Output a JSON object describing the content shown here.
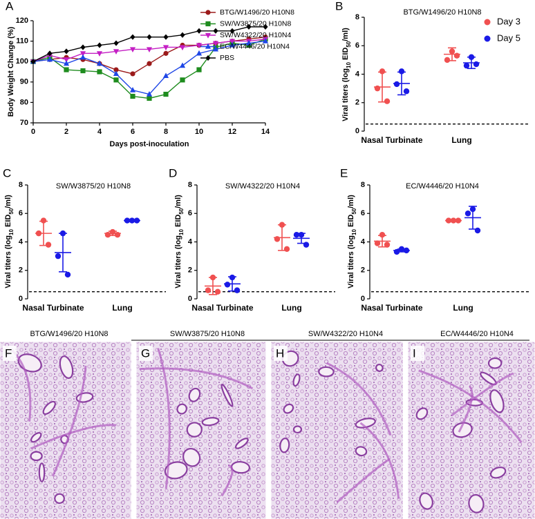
{
  "chart_data": [
    {
      "type": "line",
      "panel": "A",
      "x_label": "Days post-inoculation",
      "y_label": "Body Weight Change (%)",
      "x": [
        0,
        1,
        2,
        3,
        4,
        5,
        6,
        7,
        8,
        9,
        10,
        11,
        12,
        13,
        14
      ],
      "xlim": [
        0,
        14
      ],
      "xticks": [
        0,
        2,
        4,
        6,
        8,
        10,
        12,
        14
      ],
      "ylim": [
        70,
        120
      ],
      "yticks": [
        70,
        80,
        90,
        100,
        110,
        120
      ],
      "legend": "top-right",
      "series": [
        {
          "name": "BTG/W1496/20 H10N8",
          "color": "#9b1a1a",
          "marker": "circle",
          "values": [
            100,
            101,
            102,
            101,
            99,
            96,
            94,
            99,
            104,
            108,
            108,
            109,
            110,
            111,
            112
          ]
        },
        {
          "name": "SW/W3875/20 H10N8",
          "color": "#1e8c1e",
          "marker": "square",
          "values": [
            100,
            102,
            96,
            95.5,
            95,
            91,
            83,
            82,
            84,
            91,
            96,
            107,
            109,
            108,
            111
          ]
        },
        {
          "name": "SW/W4322/20 H10N4",
          "color": "#c41ec4",
          "marker": "triangle-down",
          "values": [
            100,
            103,
            101,
            104,
            104,
            105,
            106,
            106,
            107,
            107,
            108,
            109,
            110,
            110,
            111
          ]
        },
        {
          "name": "EC/W4446/20 H10N4",
          "color": "#1e46e6",
          "marker": "triangle-up",
          "values": [
            100,
            101,
            99,
            102,
            99,
            94,
            86,
            84,
            93,
            98,
            104,
            106,
            108,
            109,
            110
          ]
        },
        {
          "name": "PBS",
          "color": "#000000",
          "marker": "diamond",
          "values": [
            100,
            104,
            105,
            107,
            108,
            109,
            112,
            112,
            112,
            113,
            115,
            115,
            115,
            117,
            117
          ]
        }
      ]
    },
    {
      "type": "scatter",
      "panel": "B",
      "title": "BTG/W1496/20 H10N8",
      "categories": [
        "Nasal Turbinate",
        "Lung"
      ],
      "y_label_parts": [
        "Viral titers (log",
        "10",
        " EID",
        "50",
        "/ml)"
      ],
      "ylim": [
        0,
        8
      ],
      "yticks": [
        0,
        2,
        4,
        6,
        8
      ],
      "detection_limit": 0.5,
      "legend": "right",
      "series": [
        {
          "name": "Day 3",
          "color": "#f05050",
          "points": [
            [
              4.2,
              3.0,
              2.1
            ],
            [
              5.6,
              5.0,
              5.3
            ]
          ],
          "mean": [
            3.1,
            5.4
          ],
          "sd": [
            1.05,
            0.45
          ]
        },
        {
          "name": "Day 5",
          "color": "#1a1ae6",
          "points": [
            [
              4.2,
              3.3,
              2.8
            ],
            [
              5.2,
              4.6,
              4.7
            ]
          ],
          "mean": [
            3.35,
            4.8
          ],
          "sd": [
            0.8,
            0.4
          ]
        }
      ]
    },
    {
      "type": "scatter",
      "panel": "C",
      "title": "SW/W3875/20 H10N8",
      "categories": [
        "Nasal Turbinate",
        "Lung"
      ],
      "y_label_parts": [
        "Viral titers (log",
        "10",
        " EID",
        "50",
        "/ml)"
      ],
      "ylim": [
        0,
        8
      ],
      "yticks": [
        0,
        2,
        4,
        6,
        8
      ],
      "detection_limit": 0.5,
      "series": [
        {
          "color": "#f05050",
          "points": [
            [
              5.5,
              4.6,
              3.8
            ],
            [
              4.7,
              4.5,
              4.5
            ]
          ],
          "mean": [
            4.6,
            4.6
          ],
          "sd": [
            0.85,
            0.15
          ]
        },
        {
          "color": "#1a1ae6",
          "points": [
            [
              4.6,
              3.0,
              1.7
            ],
            [
              5.5,
              5.5,
              5.5
            ]
          ],
          "mean": [
            3.25,
            5.5
          ],
          "sd": [
            1.35,
            0
          ]
        }
      ]
    },
    {
      "type": "scatter",
      "panel": "D",
      "title": "SW/W4322/20 H10N4",
      "categories": [
        "Nasal Turbinate",
        "Lung"
      ],
      "y_label_parts": [
        "Viral titers (log",
        "10",
        " EID",
        "50",
        "/ml)"
      ],
      "ylim": [
        0,
        8
      ],
      "yticks": [
        0,
        2,
        4,
        6,
        8
      ],
      "detection_limit": 0.5,
      "series": [
        {
          "color": "#f05050",
          "points": [
            [
              1.5,
              0.6,
              0.5
            ],
            [
              5.2,
              4.2,
              3.5
            ]
          ],
          "mean": [
            0.9,
            4.3
          ],
          "sd": [
            0.6,
            0.9
          ]
        },
        {
          "color": "#1a1ae6",
          "points": [
            [
              1.5,
              1.0,
              0.6
            ],
            [
              4.5,
              4.5,
              3.8
            ]
          ],
          "mean": [
            1.05,
            4.25
          ],
          "sd": [
            0.5,
            0.35
          ]
        }
      ]
    },
    {
      "type": "scatter",
      "panel": "E",
      "title": "EC/W4446/20 H10N4",
      "categories": [
        "Nasal Turbinate",
        "Lung"
      ],
      "y_label_parts": [
        "Viral titers (log",
        "10",
        " EID",
        "50",
        "/ml)"
      ],
      "ylim": [
        0,
        8
      ],
      "yticks": [
        0,
        2,
        4,
        6,
        8
      ],
      "detection_limit": 0.5,
      "series": [
        {
          "color": "#f05050",
          "points": [
            [
              4.5,
              3.9,
              3.8
            ],
            [
              5.5,
              5.5,
              5.5
            ]
          ],
          "mean": [
            4.05,
            5.5
          ],
          "sd": [
            0.4,
            0
          ]
        },
        {
          "color": "#1a1ae6",
          "points": [
            [
              3.5,
              3.3,
              3.4
            ],
            [
              6.3,
              6.0,
              4.8
            ]
          ],
          "mean": [
            3.4,
            5.7
          ],
          "sd": [
            0.1,
            0.8
          ]
        }
      ]
    }
  ],
  "histology": [
    {
      "label": "F",
      "title": "BTG/W1496/20 H10N8"
    },
    {
      "label": "G",
      "title": "SW/W3875/20 H10N8"
    },
    {
      "label": "H",
      "title": "SW/W4322/20 H10N4"
    },
    {
      "label": "I",
      "title": "EC/W4446/20 H10N4"
    }
  ]
}
